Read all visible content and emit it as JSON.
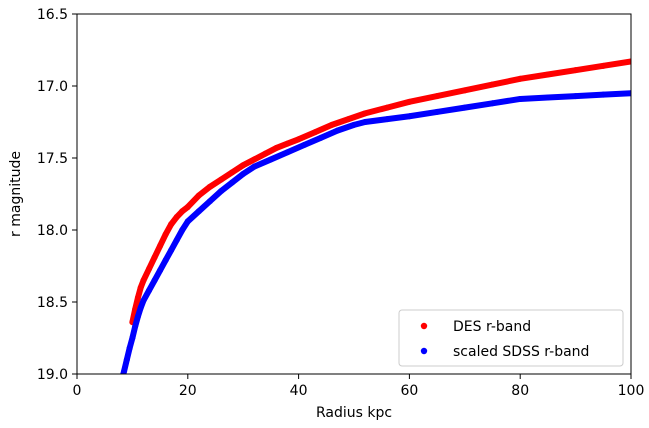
{
  "chart_data": {
    "type": "scatter",
    "title": "",
    "xlabel": "Radius kpc",
    "ylabel": "r magnitude",
    "xlim": [
      0,
      100
    ],
    "ylim": [
      19.0,
      16.5
    ],
    "y_inverted": true,
    "x_ticks": [
      0,
      20,
      40,
      60,
      80,
      100
    ],
    "x_tick_labels": [
      "0",
      "20",
      "40",
      "60",
      "80",
      "100"
    ],
    "y_ticks": [
      16.5,
      17.0,
      17.5,
      18.0,
      18.5,
      19.0
    ],
    "y_tick_labels": [
      "16.5",
      "17.0",
      "17.5",
      "18.0",
      "18.5",
      "19.0"
    ],
    "grid": false,
    "legend_position": "lower-right",
    "series": [
      {
        "name": "DES r-band",
        "color": "#ff0000",
        "x": [
          10.0,
          10.5,
          11,
          11.5,
          12,
          13,
          14,
          15,
          16,
          17,
          18,
          19,
          20,
          22,
          24,
          26,
          28,
          30,
          32,
          34,
          36,
          38,
          40,
          43,
          46,
          49,
          52,
          56,
          60,
          65,
          70,
          75,
          80,
          85,
          90,
          95,
          100
        ],
        "y": [
          18.64,
          18.55,
          18.47,
          18.4,
          18.35,
          18.27,
          18.19,
          18.11,
          18.03,
          17.96,
          17.91,
          17.87,
          17.84,
          17.76,
          17.7,
          17.65,
          17.6,
          17.55,
          17.51,
          17.47,
          17.43,
          17.4,
          17.37,
          17.32,
          17.27,
          17.23,
          17.19,
          17.15,
          17.11,
          17.07,
          17.03,
          16.99,
          16.95,
          16.92,
          16.89,
          16.86,
          16.83
        ]
      },
      {
        "name": "scaled SDSS r-band",
        "color": "#0000ff",
        "x": [
          8.0,
          8.5,
          9,
          9.5,
          10,
          10.5,
          11,
          11.5,
          12,
          13,
          14,
          15,
          16,
          17,
          18,
          19,
          20,
          22,
          24,
          26,
          28,
          30,
          32,
          35,
          38,
          41,
          44,
          47,
          50,
          52,
          56,
          60,
          65,
          70,
          75,
          80,
          85,
          90,
          95,
          100
        ],
        "y": [
          19.05,
          18.98,
          18.9,
          18.82,
          18.75,
          18.67,
          18.6,
          18.54,
          18.49,
          18.42,
          18.35,
          18.28,
          18.21,
          18.14,
          18.07,
          18.0,
          17.94,
          17.87,
          17.8,
          17.73,
          17.67,
          17.61,
          17.56,
          17.51,
          17.46,
          17.41,
          17.36,
          17.31,
          17.27,
          17.25,
          17.23,
          17.21,
          17.18,
          17.15,
          17.12,
          17.09,
          17.08,
          17.07,
          17.06,
          17.05
        ]
      }
    ]
  }
}
